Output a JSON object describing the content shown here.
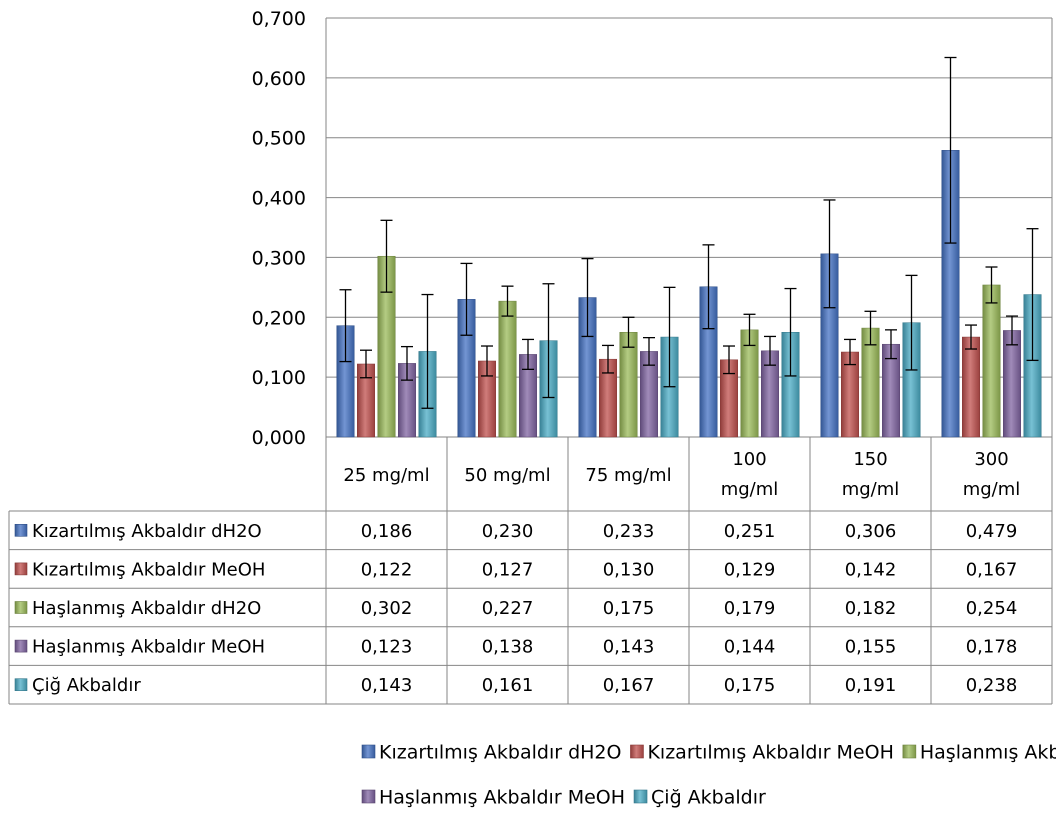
{
  "chart_data": {
    "type": "bar",
    "title": "",
    "xlabel": "",
    "ylabel": "",
    "ylim": [
      0,
      0.7
    ],
    "y_ticks": [
      "0,000",
      "0,100",
      "0,200",
      "0,300",
      "0,400",
      "0,500",
      "0,600",
      "0,700"
    ],
    "y_tick_values": [
      0,
      0.1,
      0.2,
      0.3,
      0.4,
      0.5,
      0.6,
      0.7
    ],
    "grid": true,
    "legend_position": "bottom",
    "data_table": true,
    "categories": [
      "25 mg/ml",
      "50 mg/ml",
      "75 mg/ml",
      "100 mg/ml",
      "150 mg/ml",
      "300 mg/ml"
    ],
    "category_lines": [
      [
        "25 mg/ml"
      ],
      [
        "50 mg/ml"
      ],
      [
        "75 mg/ml"
      ],
      [
        "100",
        "mg/ml"
      ],
      [
        "150",
        "mg/ml"
      ],
      [
        "300",
        "mg/ml"
      ]
    ],
    "series": [
      {
        "name": "Kızartılmış Akbaldır dH2O",
        "color": "#4472C4",
        "values": [
          0.186,
          0.23,
          0.233,
          0.251,
          0.306,
          0.479
        ],
        "labels": [
          "0,186",
          "0,230",
          "0,233",
          "0,251",
          "0,306",
          "0,479"
        ],
        "error": [
          0.06,
          0.06,
          0.065,
          0.07,
          0.09,
          0.155
        ]
      },
      {
        "name": "Kızartılmış Akbaldır MeOH",
        "color": "#C0504D",
        "values": [
          0.122,
          0.127,
          0.13,
          0.129,
          0.142,
          0.167
        ],
        "labels": [
          "0,122",
          "0,127",
          "0,130",
          "0,129",
          "0,142",
          "0,167"
        ],
        "error": [
          0.023,
          0.025,
          0.023,
          0.023,
          0.021,
          0.02
        ]
      },
      {
        "name": "Haşlanmış Akbaldır dH2O",
        "color": "#9BBB59",
        "values": [
          0.302,
          0.227,
          0.175,
          0.179,
          0.182,
          0.254
        ],
        "labels": [
          "0,302",
          "0,227",
          "0,175",
          "0,179",
          "0,182",
          "0,254"
        ],
        "error": [
          0.06,
          0.025,
          0.025,
          0.026,
          0.028,
          0.03
        ]
      },
      {
        "name": "Haşlanmış Akbaldır MeOH",
        "color": "#8064A2",
        "values": [
          0.123,
          0.138,
          0.143,
          0.144,
          0.155,
          0.178
        ],
        "labels": [
          "0,123",
          "0,138",
          "0,143",
          "0,144",
          "0,155",
          "0,178"
        ],
        "error": [
          0.028,
          0.025,
          0.023,
          0.024,
          0.024,
          0.024
        ]
      },
      {
        "name": "Çiğ Akbaldır",
        "color": "#4BACC6",
        "values": [
          0.143,
          0.161,
          0.167,
          0.175,
          0.191,
          0.238
        ],
        "labels": [
          "0,143",
          "0,161",
          "0,167",
          "0,175",
          "0,191",
          "0,238"
        ],
        "error": [
          0.095,
          0.095,
          0.083,
          0.073,
          0.079,
          0.11
        ]
      }
    ]
  }
}
